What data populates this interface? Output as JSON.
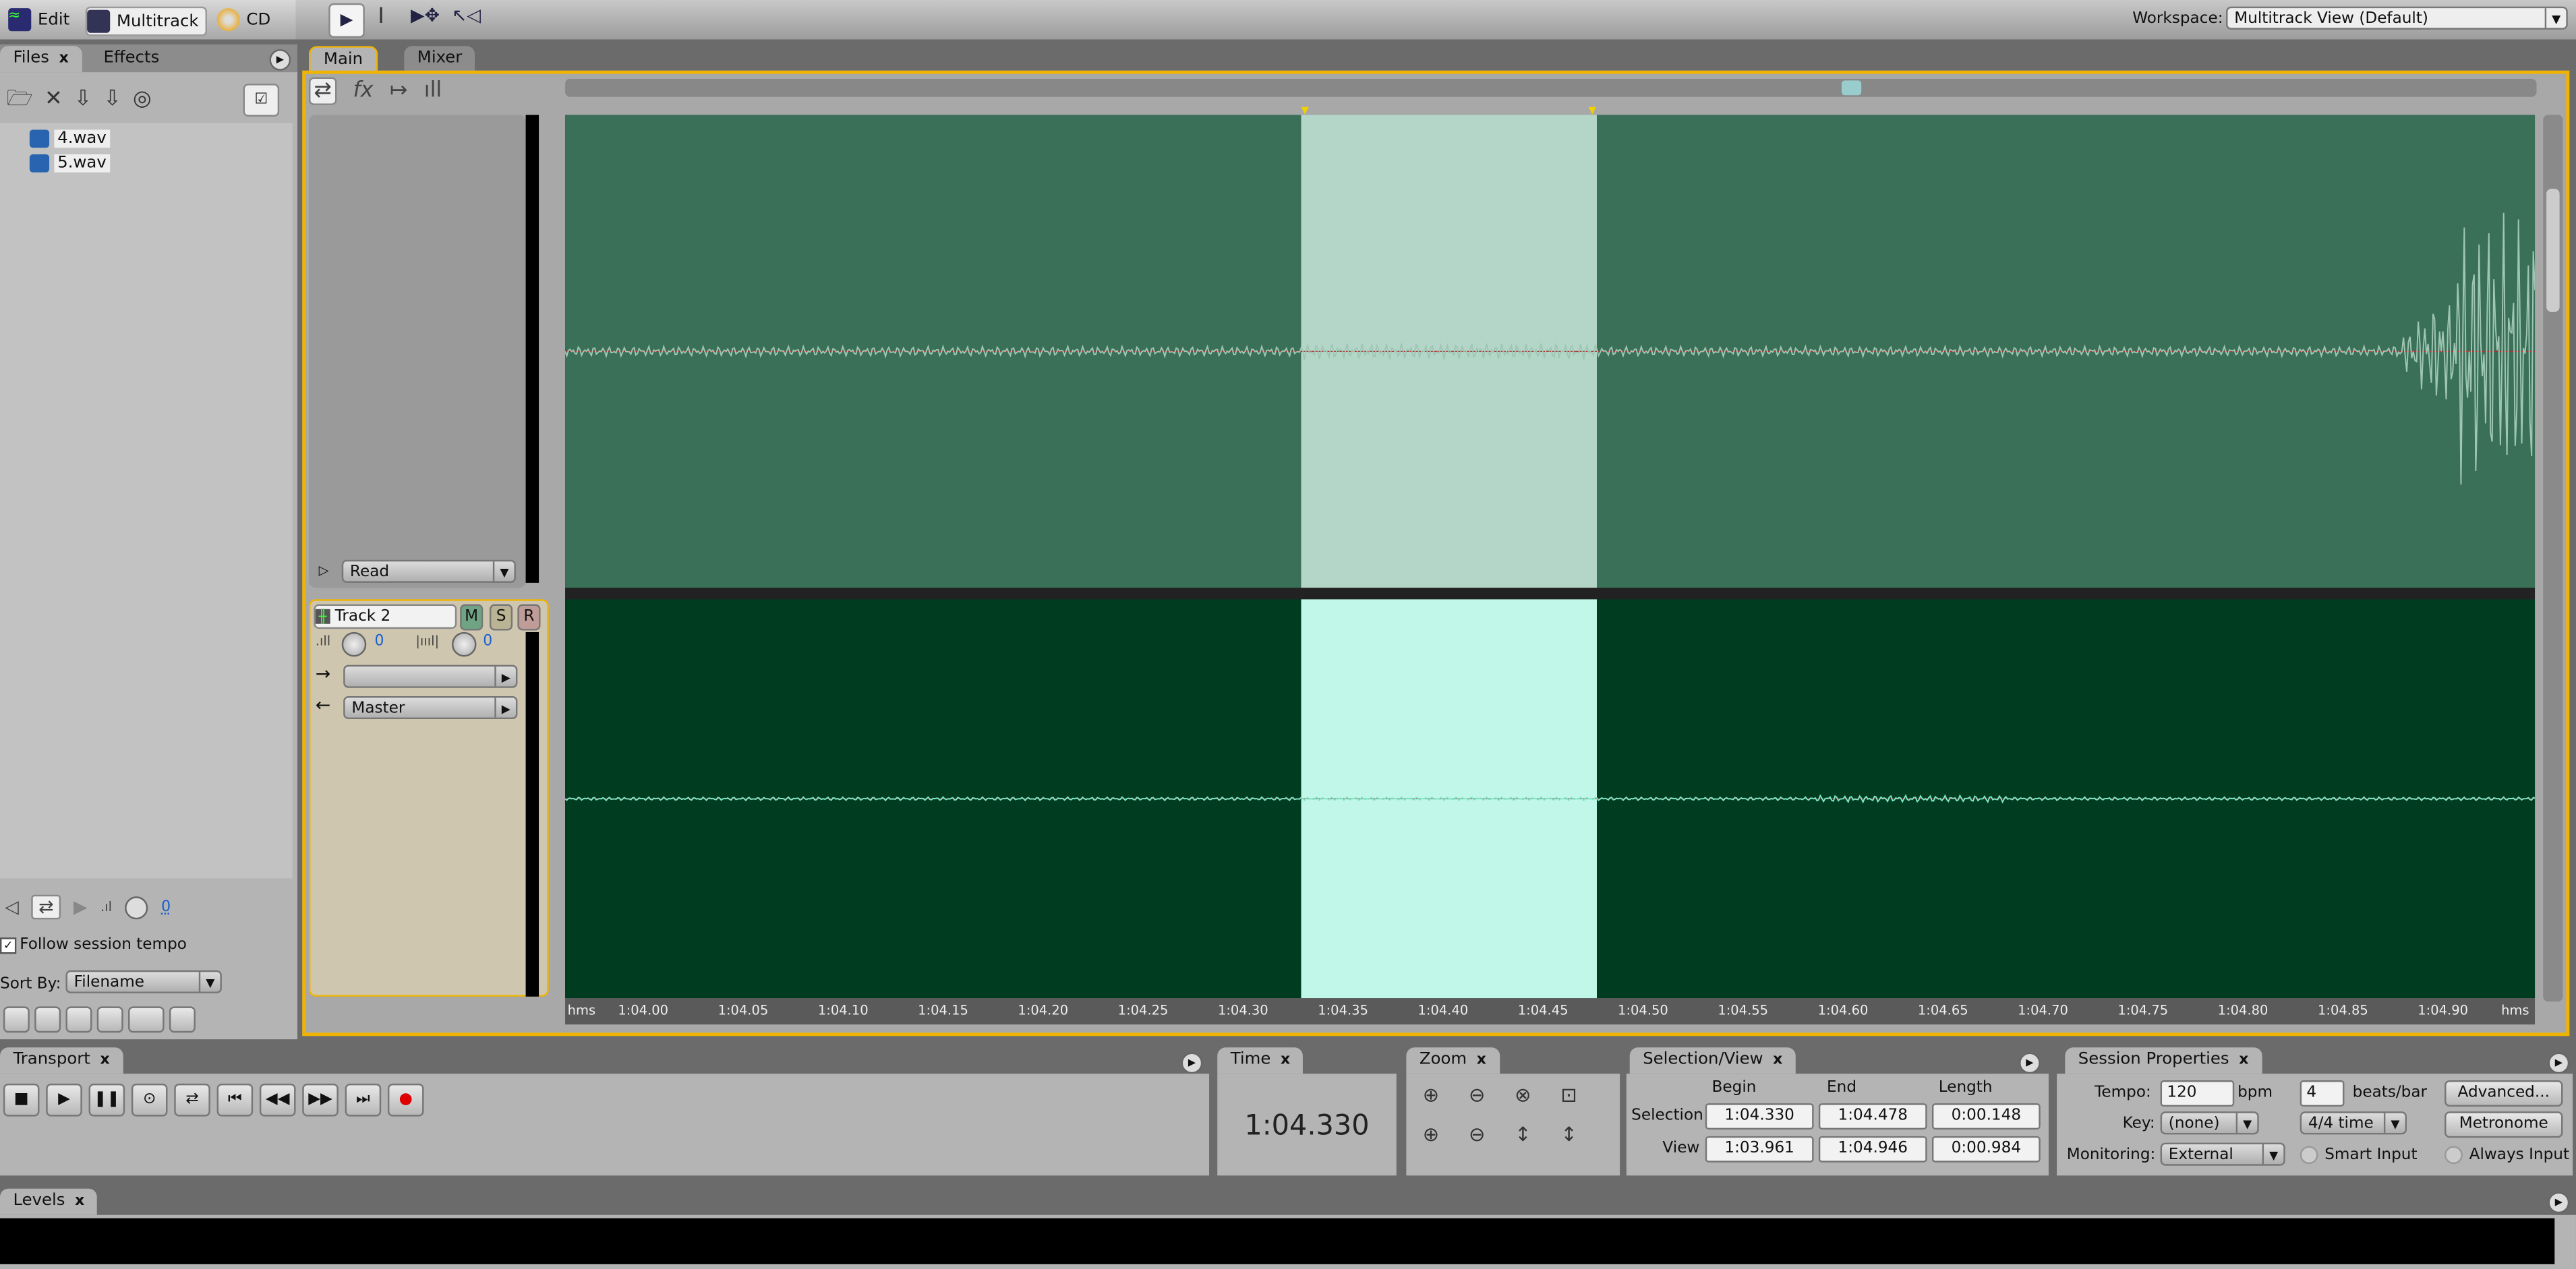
{
  "topbar": {
    "views": [
      {
        "label": "Edit",
        "icon": "waveform-edit-icon"
      },
      {
        "label": "Multitrack",
        "icon": "multitrack-icon"
      },
      {
        "label": "CD",
        "icon": "cd-icon"
      }
    ],
    "tools": [
      "move-tool-icon",
      "time-selection-tool-icon",
      "hybrid-tool-icon",
      "scrub-tool-icon"
    ],
    "workspace_label": "Workspace:",
    "workspace_value": "Multitrack View (Default)"
  },
  "files_panel": {
    "tabs": [
      "Files",
      "Effects"
    ],
    "close": "x",
    "files": [
      "4.wav",
      "5.wav"
    ],
    "follow_tempo": "Follow session tempo",
    "follow_tempo_checked": true,
    "volume_value": "0",
    "sort_label": "Sort By:",
    "sort_value": "Filename"
  },
  "main": {
    "tabs": [
      "Main",
      "Mixer"
    ],
    "track1": {
      "automation_mode": "Read"
    },
    "track2": {
      "name": "Track 2",
      "mute": "M",
      "solo": "S",
      "record": "R",
      "volume": "0",
      "pan": "0",
      "input": "",
      "output": "Master"
    },
    "ruler": {
      "unit_left": "hms",
      "unit_right": "hms",
      "ticks": [
        "1:04.00",
        "1:04.05",
        "1:04.10",
        "1:04.15",
        "1:04.20",
        "1:04.25",
        "1:04.30",
        "1:04.35",
        "1:04.40",
        "1:04.45",
        "1:04.50",
        "1:04.55",
        "1:04.60",
        "1:04.65",
        "1:04.70",
        "1:04.75",
        "1:04.80",
        "1:04.85",
        "1:04.90"
      ]
    },
    "colors": {
      "track1_bg": "#3b7058",
      "track1_sel": "#b4d6c8",
      "track2_bg": "#003d20",
      "track2_sel": "#c0f7e8",
      "accent": "#f0b400"
    }
  },
  "transport": {
    "title": "Transport",
    "close": "x",
    "buttons": [
      "stop",
      "play",
      "pause",
      "play-from-cursor",
      "loop",
      "go-to-start",
      "rewind",
      "fast-forward",
      "go-to-end",
      "record"
    ]
  },
  "time": {
    "title": "Time",
    "close": "x",
    "value": "1:04.330"
  },
  "zoom": {
    "title": "Zoom",
    "close": "x"
  },
  "selection_view": {
    "title": "Selection/View",
    "close": "x",
    "headers": [
      "Begin",
      "End",
      "Length"
    ],
    "rows": [
      {
        "label": "Selection",
        "begin": "1:04.330",
        "end": "1:04.478",
        "length": "0:00.148"
      },
      {
        "label": "View",
        "begin": "1:03.961",
        "end": "1:04.946",
        "length": "0:00.984"
      }
    ]
  },
  "session": {
    "title": "Session Properties",
    "close": "x",
    "tempo_label": "Tempo:",
    "tempo": "120",
    "bpm": "bpm",
    "beats": "4",
    "beats_label": "beats/bar",
    "advanced": "Advanced...",
    "key_label": "Key:",
    "key": "(none)",
    "time_sig": "4/4 time",
    "metronome": "Metronome",
    "monitoring_label": "Monitoring:",
    "monitoring": "External",
    "smart_input": "Smart Input",
    "always_input": "Always Input"
  },
  "levels": {
    "title": "Levels",
    "close": "x"
  }
}
